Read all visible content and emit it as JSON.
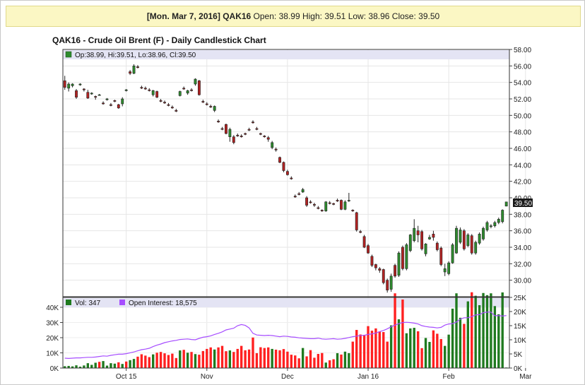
{
  "quote": {
    "date": "[Mon. Mar 7, 2016]",
    "symbol": "QAK16",
    "open_label": "Open:",
    "open": "38.99",
    "high_label": "High:",
    "high": "39.51",
    "low_label": "Low:",
    "low": "38.96",
    "close_label": "Close:",
    "close": "39.50"
  },
  "title": "QAK16 - Crude Oil Brent (F) - Daily Candlestick Chart",
  "price_legend": "Op:38.99, Hi:39.51, Lo:38.96, Cl:39.50",
  "price_tag": "39.50",
  "volume_legend": {
    "vol": "Vol: 347",
    "oi": "Open Interest: 18,575"
  },
  "colors": {
    "up": "#2e8b2e",
    "down": "#b22222",
    "vol_up": "#1f7a1f",
    "vol_down": "#ff2020",
    "oi_line": "#a64dff",
    "legend_bg": "#e4e4f4"
  },
  "chart_data": [
    {
      "type": "candlestick",
      "title": "QAK16 - Crude Oil Brent (F) - Daily Candlestick Chart",
      "x_ticks": [
        "Oct 15",
        "Nov",
        "Dec",
        "Jan 16",
        "Feb",
        "Mar"
      ],
      "x_tick_index": [
        16,
        37,
        58,
        79,
        100,
        120
      ],
      "ylim": [
        28,
        58
      ],
      "y_ticks": [
        "58.00",
        "56.00",
        "54.00",
        "52.00",
        "50.00",
        "48.00",
        "46.00",
        "44.00",
        "42.00",
        "40.00",
        "38.00",
        "36.00",
        "34.00",
        "32.00",
        "30.00"
      ],
      "grid": true,
      "candles": [
        [
          54.2,
          54.8,
          53.1,
          53.4
        ],
        [
          53.3,
          54.0,
          52.9,
          53.8
        ],
        [
          53.6,
          53.9,
          53.4,
          53.8
        ],
        [
          53.0,
          53.2,
          52.0,
          52.2
        ],
        [
          53.7,
          53.9,
          53.6,
          53.8
        ],
        [
          53.2,
          53.3,
          52.9,
          53.1
        ],
        [
          52.8,
          53.1,
          52.0,
          52.1
        ],
        [
          52.6,
          52.8,
          52.5,
          52.7
        ],
        [
          52.3,
          52.4,
          51.9,
          52.2
        ],
        [
          52.5,
          52.6,
          52.4,
          52.5
        ],
        [
          51.5,
          51.7,
          51.3,
          51.4
        ],
        [
          51.9,
          52.1,
          51.8,
          52.0
        ],
        [
          51.3,
          51.5,
          51.1,
          51.2
        ],
        [
          51.8,
          51.9,
          51.6,
          51.7
        ],
        [
          51.3,
          51.4,
          50.8,
          50.9
        ],
        [
          51.4,
          52.2,
          51.1,
          52.0
        ],
        [
          53.0,
          53.2,
          52.9,
          53.1
        ],
        [
          55.3,
          55.5,
          54.9,
          55.1
        ],
        [
          55.1,
          56.2,
          55.0,
          56.0
        ],
        [
          55.9,
          56.1,
          55.7,
          55.8
        ],
        [
          53.4,
          53.6,
          53.2,
          53.3
        ],
        [
          53.3,
          53.5,
          53.1,
          53.2
        ],
        [
          53.1,
          53.3,
          52.9,
          53.0
        ],
        [
          52.5,
          53.1,
          52.3,
          53.0
        ],
        [
          52.9,
          53.0,
          52.1,
          52.2
        ],
        [
          51.8,
          52.0,
          51.6,
          51.7
        ],
        [
          51.6,
          51.8,
          51.4,
          51.5
        ],
        [
          51.3,
          51.5,
          51.1,
          51.2
        ],
        [
          51.0,
          51.2,
          50.8,
          50.9
        ],
        [
          50.6,
          50.8,
          50.4,
          50.5
        ],
        [
          52.4,
          53.0,
          52.3,
          52.9
        ],
        [
          53.3,
          53.5,
          53.1,
          53.2
        ],
        [
          52.7,
          53.1,
          52.5,
          53.0
        ],
        [
          53.1,
          53.3,
          52.9,
          53.0
        ],
        [
          53.8,
          54.5,
          53.6,
          54.4
        ],
        [
          54.2,
          54.3,
          52.4,
          52.5
        ],
        [
          51.7,
          51.9,
          51.5,
          51.6
        ],
        [
          51.4,
          51.6,
          51.2,
          51.3
        ],
        [
          51.1,
          51.3,
          50.9,
          51.0
        ],
        [
          50.6,
          51.2,
          50.4,
          51.1
        ],
        [
          49.3,
          49.5,
          49.1,
          49.2
        ],
        [
          48.4,
          48.6,
          48.2,
          48.3
        ],
        [
          48.9,
          49.0,
          47.7,
          47.8
        ],
        [
          47.4,
          48.5,
          46.8,
          48.3
        ],
        [
          47.4,
          47.6,
          46.5,
          46.7
        ],
        [
          47.6,
          47.8,
          47.4,
          47.5
        ],
        [
          47.5,
          47.7,
          47.3,
          47.4
        ],
        [
          47.8,
          47.9,
          47.6,
          47.7
        ],
        [
          48.3,
          48.5,
          48.1,
          48.2
        ],
        [
          49.2,
          49.4,
          49.0,
          49.1
        ],
        [
          48.4,
          48.6,
          48.2,
          48.3
        ],
        [
          47.8,
          47.9,
          47.6,
          47.7
        ],
        [
          47.5,
          47.6,
          47.3,
          47.4
        ],
        [
          47.3,
          47.5,
          46.8,
          47.1
        ],
        [
          46.1,
          46.9,
          45.9,
          46.7
        ],
        [
          45.9,
          46.1,
          45.6,
          45.8
        ],
        [
          44.9,
          45.0,
          44.2,
          44.3
        ],
        [
          44.3,
          44.4,
          43.1,
          43.3
        ],
        [
          43.2,
          43.4,
          42.7,
          42.8
        ],
        [
          42.4,
          42.6,
          42.2,
          42.3
        ],
        [
          40.2,
          40.4,
          40.0,
          40.1
        ],
        [
          40.5,
          40.7,
          40.3,
          40.4
        ],
        [
          40.7,
          41.2,
          40.6,
          41.0
        ],
        [
          40.0,
          40.2,
          38.9,
          39.1
        ],
        [
          39.5,
          39.7,
          39.3,
          39.4
        ],
        [
          39.2,
          39.4,
          38.9,
          39.1
        ],
        [
          38.8,
          39.0,
          38.6,
          38.7
        ],
        [
          38.5,
          38.6,
          38.3,
          38.4
        ],
        [
          38.4,
          39.6,
          38.3,
          39.5
        ],
        [
          39.4,
          39.6,
          39.2,
          39.3
        ],
        [
          39.3,
          39.4,
          39.1,
          39.2
        ],
        [
          39.7,
          39.9,
          39.5,
          39.6
        ],
        [
          39.7,
          39.8,
          38.5,
          38.6
        ],
        [
          38.6,
          39.7,
          38.5,
          39.5
        ],
        [
          39.7,
          40.6,
          39.5,
          39.7
        ],
        [
          38.5,
          38.6,
          38.3,
          38.4
        ],
        [
          38.2,
          38.3,
          35.9,
          36.1
        ],
        [
          35.9,
          36.1,
          35.7,
          35.8
        ],
        [
          35.3,
          35.5,
          33.9,
          34.0
        ],
        [
          34.2,
          34.4,
          33.2,
          33.3
        ],
        [
          32.9,
          33.1,
          31.6,
          31.8
        ],
        [
          31.9,
          32.0,
          31.2,
          31.5
        ],
        [
          31.4,
          31.6,
          30.9,
          31.2
        ],
        [
          31.3,
          31.4,
          29.5,
          29.7
        ],
        [
          30.0,
          30.2,
          28.5,
          28.8
        ],
        [
          28.9,
          30.8,
          28.6,
          30.5
        ],
        [
          31.8,
          32.0,
          30.3,
          30.5
        ],
        [
          30.6,
          33.5,
          30.4,
          33.3
        ],
        [
          34.0,
          34.2,
          31.2,
          31.4
        ],
        [
          31.4,
          34.5,
          31.2,
          34.3
        ],
        [
          33.6,
          35.6,
          33.4,
          35.5
        ],
        [
          34.8,
          37.4,
          34.6,
          36.3
        ],
        [
          36.0,
          36.6,
          34.6,
          35.5
        ],
        [
          35.9,
          36.1,
          33.6,
          33.8
        ],
        [
          33.2,
          34.5,
          32.9,
          34.4
        ],
        [
          35.0,
          35.5,
          34.9,
          35.2
        ],
        [
          35.6,
          36.0,
          34.8,
          35.2
        ],
        [
          34.5,
          34.7,
          33.5,
          33.7
        ],
        [
          33.9,
          34.1,
          31.7,
          31.9
        ],
        [
          31.0,
          32.0,
          30.5,
          31.4
        ],
        [
          30.8,
          32.3,
          30.6,
          32.1
        ],
        [
          32.1,
          34.5,
          32.0,
          34.3
        ],
        [
          33.3,
          36.6,
          33.2,
          36.3
        ],
        [
          34.6,
          36.4,
          34.4,
          36.1
        ],
        [
          36.0,
          36.2,
          33.6,
          33.8
        ],
        [
          34.2,
          35.7,
          34.0,
          35.5
        ],
        [
          35.4,
          35.6,
          33.1,
          33.3
        ],
        [
          33.3,
          34.8,
          33.1,
          34.6
        ],
        [
          34.5,
          35.8,
          34.3,
          35.6
        ],
        [
          35.0,
          36.5,
          34.8,
          36.3
        ],
        [
          36.1,
          37.2,
          35.9,
          37.0
        ],
        [
          36.5,
          36.8,
          36.3,
          36.6
        ],
        [
          36.6,
          37.2,
          36.4,
          37.0
        ],
        [
          37.0,
          37.6,
          36.8,
          37.4
        ],
        [
          37.1,
          38.6,
          36.9,
          38.5
        ],
        [
          38.99,
          39.51,
          38.96,
          39.5
        ]
      ]
    },
    {
      "type": "bar+line",
      "series": [
        {
          "name": "Vol: 347",
          "type": "bar"
        },
        {
          "name": "Open Interest: 18,575",
          "type": "line"
        }
      ],
      "ylim_left": [
        0,
        40000
      ],
      "y_ticks_left": [
        "40K",
        "30K",
        "20K",
        "10K",
        "0K"
      ],
      "ylim_right": [
        0,
        25000
      ],
      "y_ticks_right": [
        "25K",
        "20K",
        "15K",
        "10K",
        "5K",
        "0K"
      ],
      "volume": [
        1200,
        1400,
        1100,
        1800,
        900,
        1700,
        3200,
        2100,
        3500,
        4100,
        4600,
        1600,
        3200,
        2900,
        3800,
        2700,
        4300,
        5200,
        6000,
        7500,
        9100,
        8200,
        7200,
        9000,
        10100,
        10600,
        9700,
        8600,
        9500,
        6600,
        11600,
        12000,
        10100,
        10600,
        9200,
        8800,
        11200,
        12600,
        13600,
        12200,
        13600,
        14600,
        11100,
        11600,
        10600,
        12600,
        14600,
        11700,
        12200,
        20100,
        9800,
        13700,
        13200,
        13600,
        12600,
        12100,
        11700,
        12500,
        10800,
        8800,
        8300,
        6400,
        13200,
        7700,
        11800,
        6800,
        9300,
        9900,
        3600,
        5100,
        5800,
        9800,
        8900,
        10800,
        9800,
        17400,
        25100,
        22100,
        21800,
        27600,
        24600,
        26100,
        24100,
        23700,
        17400,
        28100,
        49200,
        32100,
        45100,
        22900,
        26100,
        26500,
        24200,
        13100,
        19800,
        17200,
        24800,
        22600,
        19100,
        14600,
        22000,
        39100,
        49200,
        33100,
        29100,
        43900,
        49900,
        47600,
        41400,
        49400,
        48000,
        49200,
        40800,
        35400,
        49800,
        347
      ],
      "volume_up": [
        true,
        true,
        true,
        true,
        true,
        true,
        true,
        true,
        true,
        false,
        true,
        true,
        true,
        true,
        false,
        true,
        false,
        true,
        true,
        false,
        false,
        false,
        false,
        true,
        false,
        false,
        false,
        false,
        false,
        false,
        true,
        false,
        true,
        false,
        true,
        false,
        false,
        false,
        false,
        true,
        false,
        false,
        false,
        true,
        false,
        false,
        false,
        false,
        false,
        false,
        false,
        false,
        false,
        false,
        true,
        false,
        false,
        false,
        false,
        false,
        false,
        false,
        true,
        false,
        false,
        false,
        false,
        false,
        true,
        false,
        false,
        true,
        false,
        true,
        true,
        false,
        false,
        false,
        false,
        false,
        false,
        false,
        false,
        false,
        false,
        true,
        false,
        true,
        false,
        true,
        true,
        true,
        false,
        false,
        true,
        true,
        false,
        false,
        false,
        true,
        true,
        true,
        true,
        true,
        false,
        true,
        false,
        true,
        true,
        true,
        true,
        true,
        true,
        true,
        true,
        true
      ],
      "open_interest": [
        3500,
        3400,
        3500,
        3600,
        3600,
        3700,
        3800,
        3800,
        3900,
        4100,
        4300,
        4200,
        4500,
        4700,
        4900,
        4900,
        5100,
        5400,
        5700,
        6100,
        6500,
        6700,
        7000,
        7600,
        8100,
        8500,
        9000,
        9300,
        9600,
        9800,
        10100,
        10200,
        10300,
        10100,
        10000,
        10500,
        10900,
        11100,
        11400,
        11900,
        12300,
        12800,
        13500,
        13800,
        14100,
        15000,
        15400,
        15100,
        14200,
        12300,
        11700,
        11600,
        11500,
        11600,
        11500,
        11300,
        11100,
        11300,
        11200,
        11000,
        10900,
        10700,
        10600,
        10500,
        10400,
        10400,
        10600,
        10300,
        10200,
        10300,
        10400,
        10200,
        10300,
        10500,
        10800,
        11100,
        11300,
        11500,
        11600,
        11900,
        12100,
        12400,
        12900,
        13300,
        13900,
        14600,
        15200,
        15700,
        16100,
        16200,
        16100,
        15900,
        15600,
        15000,
        14700,
        14500,
        14400,
        14200,
        14400,
        15200,
        15600,
        15700,
        16300,
        17300,
        17800,
        17800,
        18200,
        18800,
        18900,
        19600,
        19800,
        19800,
        18500,
        18575,
        18400,
        18575
      ]
    }
  ]
}
